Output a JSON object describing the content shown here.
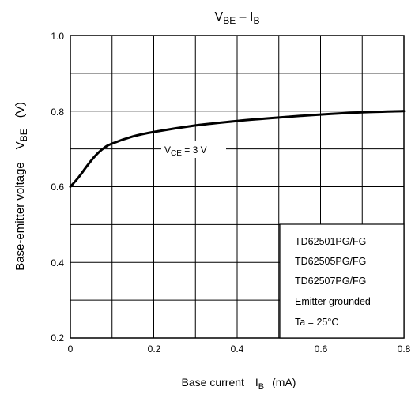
{
  "chart_data": {
    "type": "line",
    "title": {
      "main": "V",
      "main_sub": "BE",
      "sep": " – ",
      "second": "I",
      "second_sub": "B"
    },
    "xlabel": {
      "text": "Base current",
      "sym": "I",
      "sub": "B",
      "unit": "(mA)"
    },
    "ylabel": {
      "text": "Base-emitter voltage",
      "sym": "V",
      "sub": "BE",
      "unit": "(V)"
    },
    "xlim": [
      0,
      0.8
    ],
    "ylim": [
      0.2,
      1.0
    ],
    "x_ticks": [
      0,
      0.2,
      0.4,
      0.6,
      0.8
    ],
    "x_tick_labels": [
      "0",
      "0.2",
      "0.4",
      "0.6",
      "0.8"
    ],
    "y_ticks": [
      0.2,
      0.4,
      0.6,
      0.8,
      1.0
    ],
    "y_tick_labels": [
      "0.2",
      "0.4",
      "0.6",
      "0.8",
      "1.0"
    ],
    "grid": true,
    "series": [
      {
        "x": [
          0,
          0.02,
          0.04,
          0.06,
          0.08,
          0.1,
          0.15,
          0.2,
          0.3,
          0.4,
          0.5,
          0.6,
          0.7,
          0.8
        ],
        "y": [
          0.6,
          0.625,
          0.655,
          0.682,
          0.702,
          0.714,
          0.733,
          0.745,
          0.762,
          0.774,
          0.783,
          0.791,
          0.797,
          0.8
        ]
      }
    ],
    "curve_label": {
      "sym": "V",
      "sub": "CE",
      "value": " = 3 V"
    },
    "legend_box": [
      "TD62501PG/FG",
      "TD62505PG/FG",
      "TD62507PG/FG",
      "Emitter grounded",
      "Ta = 25°C"
    ]
  }
}
